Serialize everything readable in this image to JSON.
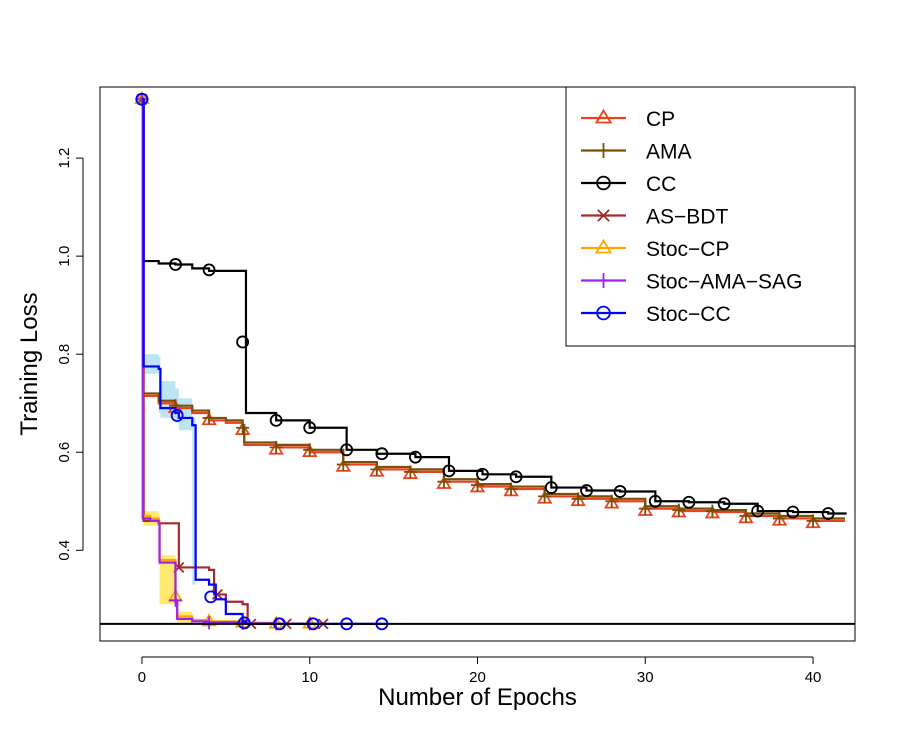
{
  "chart_data": {
    "type": "line",
    "title": "",
    "xlabel": "Number of Epochs",
    "ylabel": "Training Loss",
    "xlim": [
      -2.5,
      42.5
    ],
    "ylim": [
      0.215,
      1.345
    ],
    "xticks": [
      0,
      10,
      20,
      30,
      40
    ],
    "yticks": [
      0.4,
      0.6,
      0.8,
      1.0,
      1.2
    ],
    "ytick_labels": [
      "0.4",
      "0.6",
      "0.8",
      "1.0",
      "1.2"
    ],
    "grid": false,
    "legend_position": "top-right",
    "reference_line": {
      "y": 0.25,
      "color": "#000000"
    },
    "series": [
      {
        "name": "CP",
        "color": "#e8431d",
        "marker": "triangle",
        "x": [
          0,
          0.05,
          1,
          2,
          3,
          4,
          5,
          6,
          6.1,
          8,
          10,
          12,
          14,
          16,
          18,
          20,
          22,
          24,
          26,
          28,
          30,
          32,
          34,
          36,
          38,
          40,
          41.9
        ],
        "y": [
          1.32,
          0.715,
          0.7,
          0.69,
          0.68,
          0.665,
          0.66,
          0.65,
          0.615,
          0.61,
          0.6,
          0.575,
          0.565,
          0.56,
          0.54,
          0.53,
          0.525,
          0.51,
          0.505,
          0.5,
          0.485,
          0.48,
          0.478,
          0.47,
          0.465,
          0.46,
          0.46
        ],
        "markers_x": [
          0,
          2,
          4,
          6,
          8,
          10,
          12,
          14,
          16,
          18,
          20,
          22,
          24,
          26,
          28,
          30,
          32,
          34,
          36,
          38,
          40
        ],
        "markers_y": [
          1.32,
          0.69,
          0.665,
          0.645,
          0.605,
          0.6,
          0.57,
          0.56,
          0.555,
          0.535,
          0.528,
          0.52,
          0.505,
          0.5,
          0.495,
          0.48,
          0.477,
          0.475,
          0.465,
          0.46,
          0.455
        ]
      },
      {
        "name": "AMA",
        "color": "#7a4f08",
        "marker": "plus",
        "x": [
          0,
          0.05,
          1,
          2,
          3,
          4,
          5,
          6,
          6.1,
          8,
          10,
          12,
          14,
          16,
          18,
          20,
          22,
          24,
          26,
          28,
          30,
          32,
          34,
          36,
          38,
          40,
          41.9
        ],
        "y": [
          1.32,
          0.72,
          0.705,
          0.695,
          0.685,
          0.67,
          0.665,
          0.655,
          0.62,
          0.615,
          0.605,
          0.58,
          0.57,
          0.565,
          0.545,
          0.535,
          0.53,
          0.515,
          0.51,
          0.505,
          0.49,
          0.485,
          0.482,
          0.475,
          0.47,
          0.465,
          0.465
        ],
        "markers_x": [
          0,
          2,
          4,
          6,
          8,
          10,
          12,
          14,
          16,
          18,
          20,
          22,
          24,
          26,
          28,
          30,
          32,
          34,
          36,
          38,
          40
        ],
        "markers_y": [
          1.32,
          0.695,
          0.67,
          0.65,
          0.61,
          0.605,
          0.575,
          0.565,
          0.56,
          0.54,
          0.533,
          0.525,
          0.51,
          0.505,
          0.5,
          0.485,
          0.482,
          0.48,
          0.47,
          0.465,
          0.46
        ]
      },
      {
        "name": "CC",
        "color": "#000000",
        "marker": "circle",
        "x": [
          0,
          0.1,
          1,
          2,
          3,
          4,
          5,
          6,
          6.2,
          8,
          10,
          12.2,
          14,
          16.3,
          18.3,
          20.3,
          22.3,
          24.4,
          26.5,
          28.5,
          30.6,
          32.6,
          34.7,
          36.7,
          38.8,
          40.9,
          42
        ],
        "y": [
          1.32,
          0.99,
          0.985,
          0.983,
          0.975,
          0.97,
          0.97,
          0.97,
          0.68,
          0.665,
          0.65,
          0.605,
          0.597,
          0.59,
          0.562,
          0.555,
          0.55,
          0.528,
          0.522,
          0.52,
          0.5,
          0.498,
          0.495,
          0.48,
          0.478,
          0.475,
          0.475
        ],
        "markers_x": [
          0,
          2,
          4,
          6,
          8,
          10,
          12.2,
          14.3,
          16.3,
          18.3,
          20.3,
          22.3,
          24.4,
          26.5,
          28.5,
          30.6,
          32.6,
          34.7,
          36.7,
          38.8,
          40.9
        ],
        "markers_y": [
          1.32,
          0.983,
          0.972,
          0.825,
          0.665,
          0.65,
          0.605,
          0.597,
          0.59,
          0.562,
          0.555,
          0.55,
          0.528,
          0.522,
          0.52,
          0.5,
          0.498,
          0.495,
          0.48,
          0.478,
          0.475
        ]
      },
      {
        "name": "AS-BDT",
        "color": "#a52a2a",
        "marker": "cross",
        "x": [
          0,
          0.1,
          1,
          2,
          2.2,
          3,
          4,
          4.3,
          5,
          6,
          6.3,
          8,
          10,
          10.8
        ],
        "y": [
          1.32,
          0.46,
          0.455,
          0.455,
          0.365,
          0.365,
          0.36,
          0.31,
          0.295,
          0.29,
          0.25,
          0.25,
          0.25,
          0.25
        ],
        "markers_x": [
          0,
          2.2,
          4.5,
          6.5,
          8.6,
          10.8
        ],
        "markers_y": [
          1.32,
          0.365,
          0.31,
          0.25,
          0.25,
          0.25
        ]
      },
      {
        "name": "Stoc-CP",
        "color": "#ffa500",
        "marker": "triangle",
        "x": [
          0,
          0.05,
          0.5,
          1,
          1.05,
          2,
          2.1,
          3,
          4,
          6,
          8,
          10
        ],
        "y": [
          1.32,
          0.47,
          0.465,
          0.46,
          0.38,
          0.3,
          0.265,
          0.258,
          0.255,
          0.252,
          0.25,
          0.25
        ],
        "markers_x": [
          0,
          2,
          4,
          6,
          8,
          10
        ],
        "markers_y": [
          1.32,
          0.305,
          0.255,
          0.252,
          0.25,
          0.25
        ]
      },
      {
        "name": "Stoc-AMA-SAG",
        "color": "#a020f0",
        "marker": "plus",
        "x": [
          0,
          0.05,
          0.5,
          1,
          1.05,
          2,
          2.1,
          3,
          4,
          6,
          8,
          10
        ],
        "y": [
          1.32,
          0.465,
          0.46,
          0.455,
          0.375,
          0.295,
          0.26,
          0.255,
          0.253,
          0.251,
          0.25,
          0.25
        ],
        "markers_x": [
          0,
          2,
          4,
          6,
          8,
          10
        ],
        "markers_y": [
          1.32,
          0.298,
          0.252,
          0.251,
          0.25,
          0.25
        ]
      },
      {
        "name": "Stoc-CC",
        "color": "#0000ff",
        "marker": "circle",
        "x": [
          0,
          0.1,
          1,
          1.1,
          2,
          2.2,
          3,
          3.2,
          4,
          4.4,
          5,
          6,
          6.2,
          8,
          10,
          12,
          14,
          14.5
        ],
        "y": [
          1.32,
          0.775,
          0.77,
          0.69,
          0.68,
          0.67,
          0.655,
          0.34,
          0.33,
          0.3,
          0.27,
          0.255,
          0.25,
          0.25,
          0.25,
          0.25,
          0.25,
          0.25
        ],
        "markers_x": [
          0,
          2.1,
          4.1,
          6.1,
          8.2,
          10.2,
          12.2,
          14.3
        ],
        "markers_y": [
          1.32,
          0.675,
          0.305,
          0.252,
          0.25,
          0.25,
          0.25,
          0.25
        ]
      }
    ],
    "bands": [
      {
        "series": "Stoc-CC",
        "color": "#87ceeb",
        "x": [
          0.1,
          1,
          1.1,
          2,
          2.2,
          3,
          3.2
        ],
        "low": [
          0.765,
          0.76,
          0.68,
          0.67,
          0.66,
          0.645,
          0.33
        ],
        "high": [
          0.8,
          0.795,
          0.745,
          0.73,
          0.71,
          0.67,
          0.35
        ]
      },
      {
        "series": "Stoc-CP",
        "color": "#ffd700",
        "x": [
          0.1,
          1,
          1.05,
          2,
          2.1,
          3
        ],
        "low": [
          0.455,
          0.45,
          0.37,
          0.29,
          0.258,
          0.252
        ],
        "high": [
          0.48,
          0.475,
          0.39,
          0.315,
          0.275,
          0.265
        ]
      }
    ]
  }
}
